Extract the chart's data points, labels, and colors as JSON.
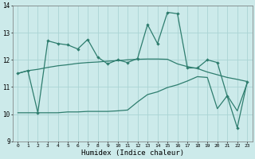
{
  "x": [
    0,
    1,
    2,
    3,
    4,
    5,
    6,
    7,
    8,
    9,
    10,
    11,
    12,
    13,
    14,
    15,
    16,
    17,
    18,
    19,
    20,
    21,
    22,
    23
  ],
  "y_main": [
    11.5,
    11.6,
    10.05,
    12.7,
    12.6,
    12.55,
    12.4,
    12.75,
    12.1,
    11.85,
    12.0,
    11.9,
    12.05,
    13.3,
    12.6,
    13.75,
    13.7,
    11.7,
    11.7,
    12.0,
    11.9,
    10.65,
    9.5,
    11.2
  ],
  "y_upper": [
    11.5,
    11.6,
    11.65,
    11.72,
    11.78,
    11.82,
    11.87,
    11.9,
    11.92,
    11.95,
    11.97,
    12.0,
    12.02,
    12.03,
    12.03,
    12.02,
    11.85,
    11.75,
    11.68,
    11.55,
    11.45,
    11.35,
    11.28,
    11.2
  ],
  "y_lower": [
    10.05,
    10.05,
    10.05,
    10.05,
    10.05,
    10.08,
    10.08,
    10.1,
    10.1,
    10.1,
    10.12,
    10.15,
    10.45,
    10.72,
    10.82,
    10.98,
    11.08,
    11.22,
    11.38,
    11.35,
    10.2,
    10.68,
    10.12,
    11.15
  ],
  "color": "#2e7d6e",
  "bg_color": "#cceaea",
  "grid_color": "#aad4d4",
  "xlabel": "Humidex (Indice chaleur)",
  "ylim": [
    9,
    14
  ],
  "xlim": [
    -0.5,
    23.5
  ],
  "yticks": [
    9,
    10,
    11,
    12,
    13,
    14
  ]
}
